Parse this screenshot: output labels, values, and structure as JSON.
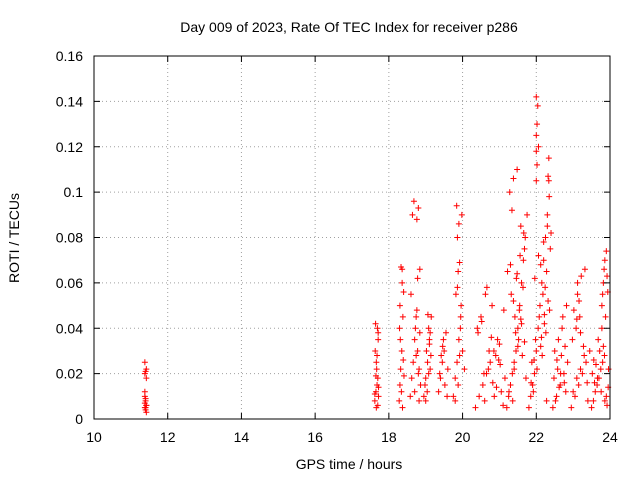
{
  "chart_data": {
    "type": "scatter",
    "title": "Day 009 of 2023, Rate Of TEC Index for receiver p286",
    "xlabel": "GPS time / hours",
    "ylabel": "ROTI / TECUs",
    "xlim": [
      10,
      24
    ],
    "ylim": [
      0,
      0.16
    ],
    "xticks": [
      10,
      12,
      14,
      16,
      18,
      20,
      22,
      24
    ],
    "xtick_labels": [
      "10",
      "12",
      "14",
      "16",
      "18",
      "20",
      "22",
      "24"
    ],
    "yticks": [
      0,
      0.02,
      0.04,
      0.06,
      0.08,
      0.1,
      0.12,
      0.14,
      0.16
    ],
    "ytick_labels": [
      "0",
      "0.02",
      "0.04",
      "0.06",
      "0.08",
      "0.1",
      "0.12",
      "0.14",
      "0.16"
    ],
    "grid": true,
    "marker": "+",
    "marker_color": "#ff0000",
    "series": [
      {
        "name": "ROTI",
        "x": [
          11.38,
          11.38,
          11.4,
          11.42,
          11.4,
          11.38,
          11.42,
          11.4,
          11.38,
          11.42,
          11.4,
          11.38,
          11.42,
          11.4,
          11.38,
          11.42,
          17.62,
          17.65,
          17.68,
          17.7,
          17.72,
          17.66,
          17.63,
          17.71,
          17.69,
          17.64,
          17.67,
          17.72,
          17.7,
          17.65,
          17.68,
          17.62,
          17.71,
          17.66,
          18.28,
          18.3,
          18.32,
          18.35,
          18.38,
          18.4,
          18.33,
          18.36,
          18.31,
          18.39,
          18.34,
          18.37,
          18.29,
          18.41,
          18.3,
          18.36,
          18.58,
          18.62,
          18.66,
          18.7,
          18.74,
          18.78,
          18.82,
          18.86,
          18.72,
          18.76,
          18.8,
          18.68,
          18.64,
          18.84,
          18.6,
          18.78,
          18.74,
          18.7,
          18.82,
          18.76,
          18.8,
          18.84,
          18.95,
          19.0,
          19.05,
          19.1,
          19.15,
          19.02,
          19.08,
          19.12,
          18.98,
          19.06,
          19.14,
          19.04,
          19.1,
          19.0,
          19.08,
          19.12,
          19.35,
          19.4,
          19.45,
          19.5,
          19.55,
          19.6,
          19.42,
          19.48,
          19.52,
          19.38,
          19.58,
          19.46,
          19.75,
          19.8,
          19.85,
          19.9,
          19.95,
          20.0,
          20.05,
          19.82,
          19.88,
          19.92,
          19.86,
          19.98,
          19.84,
          19.9,
          19.94,
          19.88,
          19.8,
          19.96,
          19.86,
          19.92,
          20.35,
          20.45,
          20.55,
          20.65,
          20.75,
          20.85,
          20.95,
          21.05,
          21.15,
          20.4,
          20.5,
          20.6,
          20.7,
          20.8,
          20.9,
          21.0,
          21.1,
          20.42,
          20.62,
          20.82,
          21.02,
          20.52,
          20.72,
          20.92,
          21.12,
          20.58,
          20.78,
          20.98,
          20.66,
          20.86,
          21.2,
          21.25,
          21.3,
          21.35,
          21.4,
          21.45,
          21.5,
          21.55,
          21.6,
          21.65,
          21.7,
          21.75,
          21.28,
          21.38,
          21.48,
          21.58,
          21.68,
          21.22,
          21.32,
          21.42,
          21.52,
          21.62,
          21.72,
          21.26,
          21.36,
          21.46,
          21.56,
          21.66,
          21.34,
          21.44,
          21.54,
          21.64,
          21.3,
          21.4,
          21.5,
          21.6,
          21.38,
          21.48,
          21.58,
          21.68,
          21.8,
          21.85,
          21.9,
          21.95,
          22.0,
          22.05,
          22.1,
          22.15,
          22.2,
          22.25,
          22.3,
          22.35,
          22.4,
          21.88,
          21.98,
          22.08,
          22.18,
          22.28,
          22.38,
          21.92,
          22.02,
          22.12,
          22.22,
          22.32,
          21.96,
          22.06,
          22.16,
          22.26,
          22.36,
          22.0,
          22.0,
          22.0,
          22.02,
          22.04,
          22.0,
          22.06,
          22.02,
          22.32,
          22.34,
          22.34,
          22.3,
          22.2,
          22.12,
          22.24,
          22.28,
          21.86,
          21.94,
          22.14,
          22.22,
          22.45,
          22.55,
          22.65,
          22.75,
          22.85,
          22.5,
          22.6,
          22.7,
          22.8,
          22.48,
          22.58,
          22.68,
          22.78,
          22.52,
          22.62,
          22.72,
          22.82,
          22.56,
          22.66,
          22.76,
          22.95,
          23.05,
          23.15,
          23.25,
          23.35,
          23.45,
          23.0,
          23.1,
          23.2,
          23.3,
          23.4,
          22.98,
          23.08,
          23.18,
          23.28,
          23.38,
          23.02,
          23.12,
          23.22,
          23.32,
          23.12,
          23.16,
          23.1,
          23.2,
          23.5,
          23.55,
          23.6,
          23.65,
          23.7,
          23.75,
          23.8,
          23.85,
          23.9,
          23.95,
          23.52,
          23.62,
          23.72,
          23.82,
          23.92,
          23.58,
          23.68,
          23.78,
          23.88,
          23.56,
          23.66,
          23.76,
          23.86,
          23.96,
          23.78,
          23.8,
          23.82,
          23.84,
          23.86,
          23.9,
          23.92,
          23.94
        ],
        "y": [
          0.005,
          0.007,
          0.009,
          0.006,
          0.004,
          0.012,
          0.018,
          0.021,
          0.025,
          0.022,
          0.008,
          0.01,
          0.006,
          0.005,
          0.02,
          0.003,
          0.008,
          0.012,
          0.015,
          0.018,
          0.01,
          0.025,
          0.03,
          0.035,
          0.04,
          0.042,
          0.022,
          0.014,
          0.006,
          0.019,
          0.028,
          0.011,
          0.038,
          0.005,
          0.008,
          0.015,
          0.022,
          0.03,
          0.045,
          0.056,
          0.067,
          0.06,
          0.035,
          0.026,
          0.012,
          0.005,
          0.04,
          0.019,
          0.05,
          0.066,
          0.01,
          0.018,
          0.025,
          0.035,
          0.045,
          0.03,
          0.022,
          0.015,
          0.04,
          0.088,
          0.093,
          0.096,
          0.09,
          0.066,
          0.055,
          0.062,
          0.028,
          0.012,
          0.008,
          0.048,
          0.02,
          0.038,
          0.01,
          0.018,
          0.025,
          0.035,
          0.045,
          0.03,
          0.04,
          0.022,
          0.015,
          0.046,
          0.028,
          0.012,
          0.033,
          0.008,
          0.02,
          0.038,
          0.012,
          0.018,
          0.025,
          0.03,
          0.038,
          0.022,
          0.028,
          0.035,
          0.015,
          0.02,
          0.01,
          0.032,
          0.01,
          0.018,
          0.025,
          0.035,
          0.045,
          0.03,
          0.022,
          0.055,
          0.065,
          0.069,
          0.08,
          0.09,
          0.094,
          0.086,
          0.04,
          0.015,
          0.008,
          0.05,
          0.058,
          0.028,
          0.005,
          0.01,
          0.015,
          0.02,
          0.025,
          0.03,
          0.035,
          0.012,
          0.018,
          0.04,
          0.045,
          0.008,
          0.022,
          0.05,
          0.028,
          0.033,
          0.006,
          0.038,
          0.055,
          0.016,
          0.024,
          0.043,
          0.03,
          0.014,
          0.048,
          0.02,
          0.036,
          0.026,
          0.058,
          0.01,
          0.005,
          0.01,
          0.015,
          0.02,
          0.025,
          0.03,
          0.04,
          0.05,
          0.06,
          0.07,
          0.08,
          0.09,
          0.1,
          0.106,
          0.11,
          0.085,
          0.075,
          0.065,
          0.055,
          0.045,
          0.035,
          0.028,
          0.018,
          0.012,
          0.008,
          0.062,
          0.072,
          0.082,
          0.092,
          0.038,
          0.048,
          0.058,
          0.068,
          0.022,
          0.032,
          0.042,
          0.052,
          0.064,
          0.044,
          0.034,
          0.005,
          0.01,
          0.015,
          0.02,
          0.03,
          0.04,
          0.05,
          0.06,
          0.07,
          0.08,
          0.09,
          0.098,
          0.082,
          0.025,
          0.035,
          0.045,
          0.055,
          0.065,
          0.075,
          0.012,
          0.022,
          0.032,
          0.042,
          0.052,
          0.062,
          0.072,
          0.028,
          0.038,
          0.048,
          0.105,
          0.118,
          0.125,
          0.13,
          0.138,
          0.142,
          0.12,
          0.112,
          0.107,
          0.105,
          0.115,
          0.085,
          0.078,
          0.068,
          0.058,
          0.008,
          0.016,
          0.026,
          0.036,
          0.046,
          0.005,
          0.01,
          0.015,
          0.02,
          0.025,
          0.03,
          0.035,
          0.04,
          0.012,
          0.018,
          0.022,
          0.028,
          0.032,
          0.008,
          0.014,
          0.045,
          0.05,
          0.026,
          0.02,
          0.016,
          0.005,
          0.01,
          0.015,
          0.02,
          0.025,
          0.03,
          0.012,
          0.018,
          0.022,
          0.028,
          0.008,
          0.035,
          0.04,
          0.045,
          0.032,
          0.016,
          0.048,
          0.055,
          0.063,
          0.066,
          0.06,
          0.052,
          0.044,
          0.038,
          0.005,
          0.008,
          0.012,
          0.015,
          0.018,
          0.022,
          0.025,
          0.028,
          0.01,
          0.014,
          0.02,
          0.024,
          0.03,
          0.032,
          0.006,
          0.016,
          0.035,
          0.04,
          0.045,
          0.026,
          0.018,
          0.012,
          0.008,
          0.022,
          0.05,
          0.055,
          0.06,
          0.066,
          0.07,
          0.074,
          0.063,
          0.056
        ]
      }
    ]
  }
}
